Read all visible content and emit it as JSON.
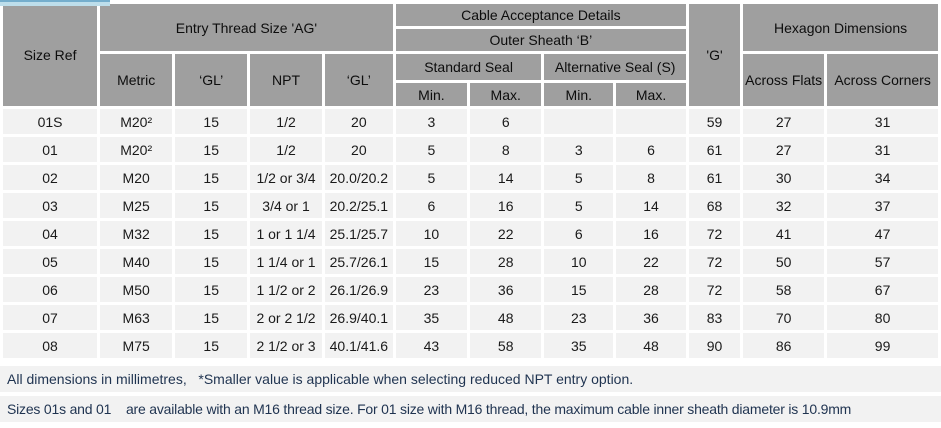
{
  "table": {
    "headers": {
      "size_ref": "Size Ref",
      "entry_thread": "Entry Thread Size 'AG'",
      "metric": "Metric",
      "gl1": "‘GL’",
      "npt": "NPT",
      "gl2": "‘GL’",
      "cable_acceptance": "Cable Acceptance Details",
      "outer_sheath": "Outer Sheath ‘B’",
      "standard_seal": "Standard Seal",
      "alternative_seal": "Alternative Seal (S)",
      "std_min": "Min.",
      "std_max": "Max.",
      "alt_min": "Min.",
      "alt_max": "Max.",
      "g": "'G'",
      "hexagon": "Hexagon Dimensions",
      "across_flats": "Across Flats",
      "across_corners": "Across Corners"
    },
    "rows": [
      [
        "01S",
        "M20²",
        "15",
        "1/2",
        "20",
        "3",
        "6",
        "",
        "",
        "59",
        "27",
        "31"
      ],
      [
        "01",
        "M20²",
        "15",
        "1/2",
        "20",
        "5",
        "8",
        "3",
        "6",
        "61",
        "27",
        "31"
      ],
      [
        "02",
        "M20",
        "15",
        "1/2 or 3/4",
        "20.0/20.2",
        "5",
        "14",
        "5",
        "8",
        "61",
        "30",
        "34"
      ],
      [
        "03",
        "M25",
        "15",
        "3/4 or 1",
        "20.2/25.1",
        "6",
        "16",
        "5",
        "14",
        "68",
        "32",
        "37"
      ],
      [
        "04",
        "M32",
        "15",
        "1 or 1 1/4",
        "25.1/25.7",
        "10",
        "22",
        "6",
        "16",
        "72",
        "41",
        "47"
      ],
      [
        "05",
        "M40",
        "15",
        "1 1/4 or 1",
        "25.7/26.1",
        "15",
        "28",
        "10",
        "22",
        "72",
        "50",
        "57"
      ],
      [
        "06",
        "M50",
        "15",
        "1 1/2 or 2",
        "26.1/26.9",
        "23",
        "36",
        "15",
        "28",
        "72",
        "58",
        "67"
      ],
      [
        "07",
        "M63",
        "15",
        "2 or 2 1/2",
        "26.9/40.1",
        "35",
        "48",
        "23",
        "36",
        "83",
        "70",
        "80"
      ],
      [
        "08",
        "M75",
        "15",
        "2 1/2 or 3",
        "40.1/41.6",
        "43",
        "58",
        "35",
        "48",
        "90",
        "86",
        "99"
      ]
    ]
  },
  "notes": {
    "line1": "All dimensions in millimetres,   *Smaller value is applicable when selecting reduced NPT entry option.",
    "line2": "Sizes 01s and 01    are available with an M16 thread size. For 01 size with M16 thread, the maximum cable inner sheath diameter is 10.9mm"
  },
  "colors": {
    "header_bg": "#9f9f9f",
    "header_text": "#0d0d0d",
    "row_bg": "#f2f2f2",
    "cell_text": "#1a1a1a",
    "note_text": "#1f3350",
    "selection_bar_fill": "#bddeeb",
    "selection_bar_border": "#74aecd"
  }
}
